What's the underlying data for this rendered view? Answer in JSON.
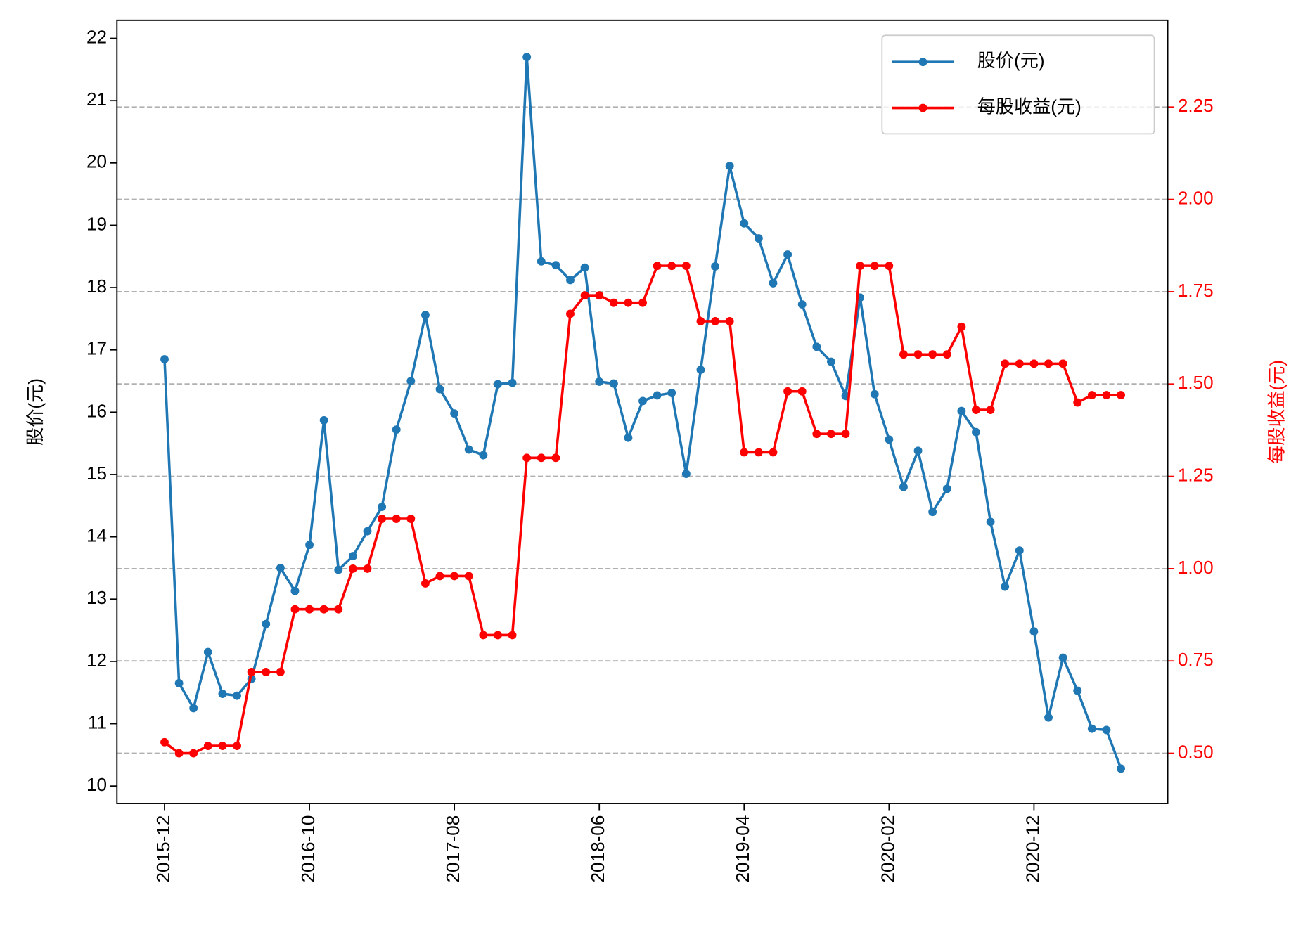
{
  "chart_data": {
    "type": "line",
    "x": [
      "2015-12",
      null,
      null,
      null,
      null,
      null,
      null,
      null,
      null,
      null,
      "2016-10",
      null,
      null,
      null,
      null,
      null,
      null,
      null,
      null,
      null,
      "2017-08",
      null,
      null,
      null,
      null,
      null,
      null,
      null,
      null,
      null,
      "2018-06",
      null,
      null,
      null,
      null,
      null,
      null,
      null,
      null,
      null,
      "2019-04",
      null,
      null,
      null,
      null,
      null,
      null,
      null,
      null,
      null,
      "2020-02",
      null,
      null,
      null,
      null,
      null,
      null,
      null,
      null,
      null,
      "2020-12",
      null,
      null,
      null,
      null,
      null,
      null
    ],
    "ylabel": "股价(元)",
    "y2label": "每股收益(元)",
    "ylim": [
      9.72,
      22.29
    ],
    "yticks": [
      10,
      11,
      12,
      13,
      14,
      15,
      16,
      17,
      18,
      19,
      20,
      21,
      22
    ],
    "y2lim": [
      0.364,
      2.485
    ],
    "y2ticks": [
      {
        "value": 0.5,
        "label": "0.50"
      },
      0.75,
      {
        "value": 1.0,
        "label": "1.00"
      },
      1.25,
      {
        "value": 1.5,
        "label": "1.50"
      },
      1.75,
      {
        "value": 2.0,
        "label": "2.00"
      },
      2.25
    ],
    "grid": true,
    "legend": "upper right",
    "series": [
      {
        "name": "股价(元)",
        "color": "#1f77b4",
        "values": [
          16.85,
          11.65,
          11.25,
          12.15,
          11.48,
          11.45,
          11.72,
          12.6,
          13.5,
          13.13,
          13.87,
          15.87,
          13.47,
          13.69,
          14.09,
          14.48,
          15.72,
          16.5,
          17.56,
          16.37,
          15.98,
          15.4,
          15.31,
          16.45,
          16.47,
          21.7,
          18.42,
          18.36,
          18.12,
          18.32,
          16.49,
          16.46,
          15.59,
          16.18,
          16.27,
          16.31,
          15.01,
          16.68,
          18.34,
          19.95,
          19.03,
          18.79,
          18.07,
          18.53,
          17.73,
          17.05,
          16.81,
          16.26,
          17.84,
          16.29,
          15.56,
          14.8,
          15.38,
          14.4,
          14.77,
          16.02,
          15.68,
          14.24,
          13.2,
          13.78,
          12.48,
          11.1,
          12.06,
          11.53,
          10.92,
          10.9,
          10.28
        ]
      },
      {
        "name": "每股收益(元)",
        "color": "#ff0000",
        "axis": "y2",
        "values": [
          0.53,
          0.5,
          0.5,
          0.52,
          0.52,
          0.52,
          0.72,
          0.72,
          0.72,
          0.89,
          0.89,
          0.89,
          0.89,
          1.0,
          1.0,
          1.135,
          1.135,
          1.135,
          0.96,
          0.98,
          0.98,
          0.98,
          0.82,
          0.82,
          0.82,
          1.3,
          1.3,
          1.3,
          1.69,
          1.74,
          1.74,
          1.72,
          1.72,
          1.72,
          1.82,
          1.82,
          1.82,
          1.67,
          1.67,
          1.67,
          1.315,
          1.315,
          1.315,
          1.48,
          1.48,
          1.365,
          1.365,
          1.365,
          1.82,
          1.82,
          1.82,
          1.58,
          1.58,
          1.58,
          1.58,
          1.655,
          1.43,
          1.43,
          1.555,
          1.555,
          1.555,
          1.555,
          1.555,
          1.45,
          1.47,
          1.47,
          1.47
        ]
      }
    ]
  }
}
